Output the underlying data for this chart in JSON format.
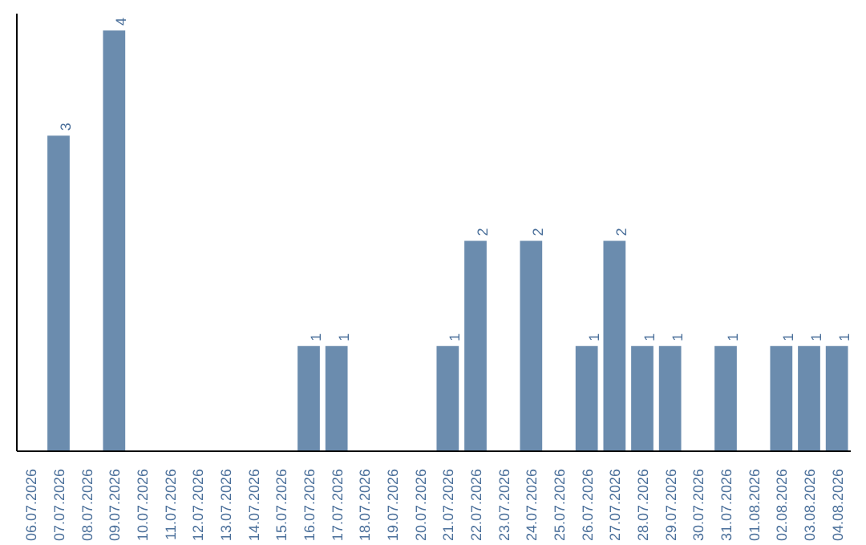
{
  "chart_data": {
    "type": "bar",
    "categories": [
      "06.07.2026",
      "07.07.2026",
      "08.07.2026",
      "09.07.2026",
      "10.07.2026",
      "11.07.2026",
      "12.07.2026",
      "13.07.2026",
      "14.07.2026",
      "15.07.2026",
      "16.07.2026",
      "17.07.2026",
      "18.07.2026",
      "19.07.2026",
      "20.07.2026",
      "21.07.2026",
      "22.07.2026",
      "23.07.2026",
      "24.07.2026",
      "25.07.2026",
      "26.07.2026",
      "27.07.2026",
      "28.07.2026",
      "29.07.2026",
      "30.07.2026",
      "31.07.2026",
      "01.08.2026",
      "02.08.2026",
      "03.08.2026",
      "04.08.2026"
    ],
    "values": [
      0,
      3,
      0,
      4,
      0,
      0,
      0,
      0,
      0,
      0,
      1,
      1,
      0,
      0,
      0,
      1,
      2,
      0,
      2,
      0,
      1,
      2,
      1,
      1,
      0,
      1,
      0,
      1,
      1,
      1
    ],
    "value_labels": [
      null,
      "3",
      null,
      "4",
      null,
      null,
      null,
      null,
      null,
      null,
      "1",
      "1",
      null,
      null,
      null,
      "1",
      "2",
      null,
      "2",
      null,
      "1",
      "2",
      "1",
      "1",
      null,
      "1",
      null,
      "1",
      "1",
      "1"
    ],
    "color": "#6b8cae",
    "tick_labels": "x"
  }
}
